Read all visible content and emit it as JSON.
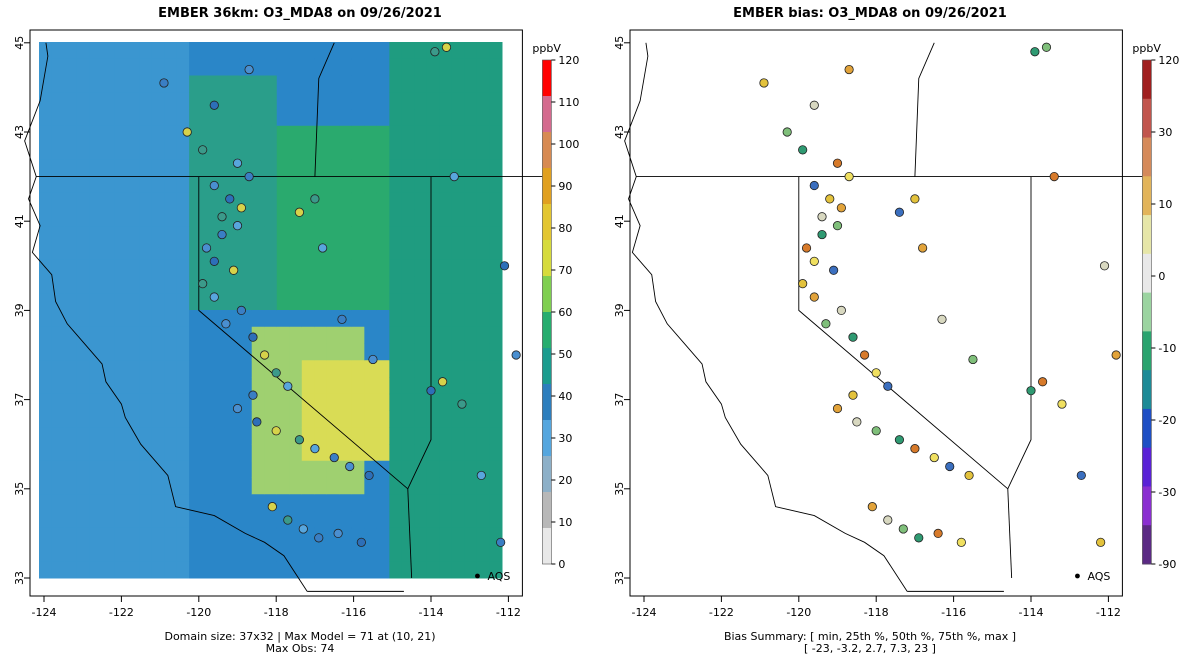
{
  "left_panel": {
    "title": "EMBER 36km: O3_MDA8 on 09/26/2021",
    "footer_line1": "Domain size: 37x32 | Max Model = 71 at (10, 21)",
    "footer_line2": "Max Obs: 74",
    "colorbar": {
      "unit": "ppbV",
      "ticks": [
        "120",
        "110",
        "100",
        "90",
        "80",
        "70",
        "60",
        "50",
        "40",
        "30",
        "20",
        "10",
        "0"
      ],
      "colors": [
        "#ff0000",
        "#d46a8e",
        "#d78a52",
        "#e0a020",
        "#e3c630",
        "#d6db3c",
        "#7fcf50",
        "#26ad6e",
        "#1b9c8e",
        "#2d7ebd",
        "#55a6de",
        "#8db0c8",
        "#b8b8b8",
        "#e8e8e8"
      ]
    },
    "label": "AQS"
  },
  "right_panel": {
    "title": "EMBER bias: O3_MDA8 on 09/26/2021",
    "footer_line1": "Bias Summary: [ min, 25th %, 50th %, 75th %, max ]",
    "footer_line2": "[ -23,   -3.2,   2.7,   7.3,   23 ]",
    "colorbar": {
      "unit": "ppbV",
      "ticks": [
        "120",
        "30",
        "10",
        "0",
        "-10",
        "-20",
        "-30",
        "-90"
      ],
      "colors": [
        "#a01f1f",
        "#c1554d",
        "#d58a5a",
        "#e2b45a",
        "#e6e6a8",
        "#e8e8e8",
        "#9bd4a0",
        "#2aa36e",
        "#1d8a96",
        "#1e4fc4",
        "#5a22d6",
        "#8a2fd0",
        "#5b2a84"
      ]
    },
    "label": "AQS"
  },
  "axes": {
    "x_ticks": [
      "-124",
      "-122",
      "-120",
      "-118",
      "-116",
      "-114",
      "-112"
    ],
    "y_ticks": [
      "33",
      "35",
      "37",
      "39",
      "41",
      "43",
      "45"
    ]
  }
}
